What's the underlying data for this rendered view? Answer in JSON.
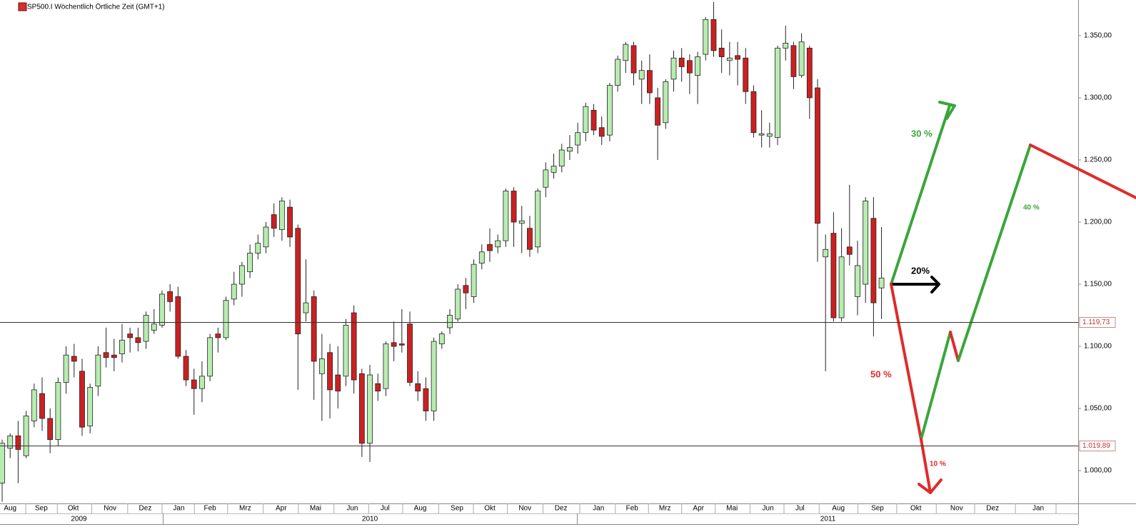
{
  "chart_data": {
    "type": "candlestick",
    "title": "SP500.I Wöchentlich Örtliche Zeit (GMT+1)",
    "up_color": "#b8ecb0",
    "down_color": "#cc2020",
    "x": [
      0,
      1,
      2,
      3,
      4,
      5,
      6,
      7,
      8,
      9,
      10,
      11,
      12,
      13,
      14,
      15,
      16,
      17,
      18,
      19,
      20,
      21,
      22,
      23,
      24,
      25,
      26,
      27,
      28,
      29,
      30,
      31,
      32,
      33,
      34,
      35,
      36,
      37,
      38,
      39,
      40,
      41,
      42,
      43,
      44,
      45,
      46,
      47,
      48,
      49,
      50,
      51,
      52,
      53,
      54,
      55,
      56,
      57,
      58,
      59,
      60,
      61,
      62,
      63,
      64,
      65,
      66,
      67,
      68,
      69,
      70,
      71,
      72,
      73,
      74,
      75,
      76,
      77,
      78,
      79,
      80,
      81,
      82,
      83,
      84,
      85,
      86,
      87,
      88,
      89,
      90,
      91,
      92,
      93,
      94,
      95,
      96,
      97,
      98,
      99,
      100,
      101,
      102,
      103,
      104,
      105,
      106,
      107,
      108,
      109,
      110
    ],
    "open": [
      990,
      1018,
      1028,
      1012,
      1040,
      1062,
      1042,
      1025,
      1071,
      1092,
      1080,
      1036,
      1068,
      1095,
      1093,
      1094,
      1110,
      1107,
      1104,
      1113,
      1117,
      1144,
      1140,
      1092,
      1073,
      1066,
      1076,
      1110,
      1107,
      1138,
      1150,
      1160,
      1175,
      1180,
      1206,
      1194,
      1212,
      1195,
      1127,
      1140,
      1078,
      1095,
      1077,
      1076,
      1127,
      1078,
      1022,
      1070,
      1066,
      1103,
      1102,
      1118,
      1070,
      1066,
      1048,
      1102,
      1115,
      1122,
      1149,
      1140,
      1167,
      1182,
      1180,
      1185,
      1225,
      1199,
      1195,
      1180,
      1228,
      1240,
      1245,
      1257,
      1262,
      1272,
      1290,
      1276,
      1270,
      1310,
      1330,
      1342,
      1315,
      1322,
      1300,
      1280,
      1315,
      1332,
      1330,
      1318,
      1335,
      1363,
      1340,
      1330,
      1334,
      1332,
      1305,
      1270,
      1269,
      1268,
      1340,
      1342,
      1318,
      1340,
      1308,
      1172,
      1191,
      1123,
      1180,
      1140,
      1150,
      1203,
      1147
    ],
    "high": [
      1025,
      1030,
      1040,
      1048,
      1070,
      1075,
      1050,
      1075,
      1100,
      1102,
      1090,
      1070,
      1100,
      1115,
      1106,
      1118,
      1115,
      1115,
      1128,
      1130,
      1145,
      1150,
      1148,
      1097,
      1082,
      1088,
      1110,
      1115,
      1140,
      1160,
      1168,
      1182,
      1190,
      1200,
      1215,
      1220,
      1218,
      1198,
      1170,
      1145,
      1110,
      1102,
      1100,
      1122,
      1133,
      1082,
      1085,
      1078,
      1104,
      1120,
      1130,
      1128,
      1080,
      1075,
      1107,
      1112,
      1130,
      1150,
      1155,
      1170,
      1182,
      1195,
      1190,
      1227,
      1228,
      1213,
      1205,
      1227,
      1248,
      1255,
      1263,
      1270,
      1280,
      1296,
      1295,
      1285,
      1312,
      1334,
      1345,
      1345,
      1330,
      1335,
      1308,
      1315,
      1338,
      1340,
      1335,
      1337,
      1365,
      1377,
      1355,
      1345,
      1345,
      1340,
      1310,
      1290,
      1280,
      1342,
      1358,
      1345,
      1352,
      1342,
      1315,
      1190,
      1208,
      1195,
      1230,
      1185,
      1220,
      1220,
      1196
    ],
    "low": [
      975,
      1010,
      990,
      1010,
      1035,
      1032,
      1014,
      1020,
      1062,
      1075,
      1028,
      1030,
      1060,
      1083,
      1080,
      1087,
      1095,
      1096,
      1098,
      1110,
      1115,
      1128,
      1090,
      1068,
      1045,
      1055,
      1072,
      1095,
      1105,
      1133,
      1140,
      1155,
      1170,
      1175,
      1188,
      1185,
      1180,
      1065,
      1120,
      1057,
      1040,
      1042,
      1050,
      1068,
      1062,
      1011,
      1007,
      1056,
      1060,
      1088,
      1095,
      1068,
      1056,
      1040,
      1040,
      1098,
      1110,
      1120,
      1130,
      1135,
      1162,
      1168,
      1175,
      1180,
      1180,
      1175,
      1172,
      1175,
      1220,
      1235,
      1240,
      1250,
      1255,
      1265,
      1270,
      1262,
      1265,
      1305,
      1320,
      1310,
      1295,
      1295,
      1250,
      1275,
      1305,
      1313,
      1303,
      1295,
      1330,
      1333,
      1320,
      1318,
      1310,
      1295,
      1268,
      1260,
      1260,
      1262,
      1330,
      1307,
      1316,
      1283,
      1168,
      1080,
      1120,
      1120,
      1165,
      1125,
      1135,
      1108,
      1122
    ],
    "close": [
      1022,
      1028,
      1017,
      1044,
      1065,
      1042,
      1025,
      1071,
      1093,
      1088,
      1035,
      1067,
      1093,
      1091,
      1091,
      1105,
      1107,
      1103,
      1125,
      1118,
      1142,
      1136,
      1092,
      1073,
      1066,
      1076,
      1107,
      1107,
      1137,
      1150,
      1165,
      1175,
      1183,
      1196,
      1195,
      1217,
      1188,
      1110,
      1135,
      1088,
      1090,
      1065,
      1064,
      1117,
      1073,
      1022,
      1077,
      1064,
      1102,
      1100,
      1101,
      1071,
      1064,
      1048,
      1104,
      1110,
      1125,
      1146,
      1143,
      1166,
      1176,
      1177,
      1185,
      1225,
      1200,
      1201,
      1178,
      1225,
      1242,
      1245,
      1258,
      1260,
      1272,
      1293,
      1274,
      1269,
      1310,
      1331,
      1343,
      1320,
      1322,
      1304,
      1278,
      1313,
      1332,
      1325,
      1320,
      1333,
      1363,
      1338,
      1333,
      1332,
      1331,
      1305,
      1272,
      1271,
      1271,
      1340,
      1344,
      1317,
      1345,
      1300,
      1199,
      1178,
      1123,
      1172,
      1174,
      1165,
      1217,
      1135,
      1155
    ],
    "xlim": [
      -0.27,
      134.6
    ],
    "ylim": [
      973.6,
      1378.7
    ],
    "yticks": [
      {
        "value": 1000,
        "label": "1.000,00"
      },
      {
        "value": 1050,
        "label": "1.050,00"
      },
      {
        "value": 1100,
        "label": "1.100,00"
      },
      {
        "value": 1150,
        "label": "1.150,00"
      },
      {
        "value": 1200,
        "label": "1.200,00"
      },
      {
        "value": 1250,
        "label": "1.250,00"
      },
      {
        "value": 1300,
        "label": "1.300,00"
      },
      {
        "value": 1350,
        "label": "1.350,00"
      }
    ],
    "xticks": [
      {
        "value": 1.0,
        "label": "Aug"
      },
      {
        "value": 4.9,
        "label": "Sep"
      },
      {
        "value": 8.9,
        "label": "Okt"
      },
      {
        "value": 13.5,
        "label": "Nov"
      },
      {
        "value": 17.9,
        "label": "Dez"
      },
      {
        "value": 22.1,
        "label": "Jan"
      },
      {
        "value": 26.0,
        "label": "Feb"
      },
      {
        "value": 30.4,
        "label": "Mrz"
      },
      {
        "value": 34.9,
        "label": "Apr"
      },
      {
        "value": 39.2,
        "label": "Mai"
      },
      {
        "value": 43.8,
        "label": "Jun"
      },
      {
        "value": 47.9,
        "label": "Jul"
      },
      {
        "value": 52.3,
        "label": "Aug"
      },
      {
        "value": 56.9,
        "label": "Sep"
      },
      {
        "value": 61.0,
        "label": "Okt"
      },
      {
        "value": 65.4,
        "label": "Nov"
      },
      {
        "value": 69.9,
        "label": "Dez"
      },
      {
        "value": 74.6,
        "label": "Jan"
      },
      {
        "value": 78.8,
        "label": "Feb"
      },
      {
        "value": 82.9,
        "label": "Mrz"
      },
      {
        "value": 87.1,
        "label": "Apr"
      },
      {
        "value": 91.3,
        "label": "Mai"
      },
      {
        "value": 95.8,
        "label": "Jun"
      },
      {
        "value": 99.8,
        "label": "Jul"
      },
      {
        "value": 104.6,
        "label": "Aug"
      },
      {
        "value": 109.5,
        "label": "Sep"
      },
      {
        "value": 114.3,
        "label": "Okt"
      },
      {
        "value": 119.4,
        "label": "Nov"
      },
      {
        "value": 123.9,
        "label": "Dez"
      },
      {
        "value": 129.6,
        "label": "Jan"
      }
    ],
    "years": [
      {
        "value": 9.6,
        "label": "2009"
      },
      {
        "value": 46.0,
        "label": "2010"
      },
      {
        "value": 103.3,
        "label": "2011"
      }
    ],
    "levels": [
      {
        "value": 1119.73,
        "label": "1.119,73"
      },
      {
        "value": 1019.89,
        "label": "1.019,89"
      }
    ],
    "annotations": [
      "30 %",
      "20%",
      "50 %",
      "40 %",
      "10 %"
    ]
  }
}
